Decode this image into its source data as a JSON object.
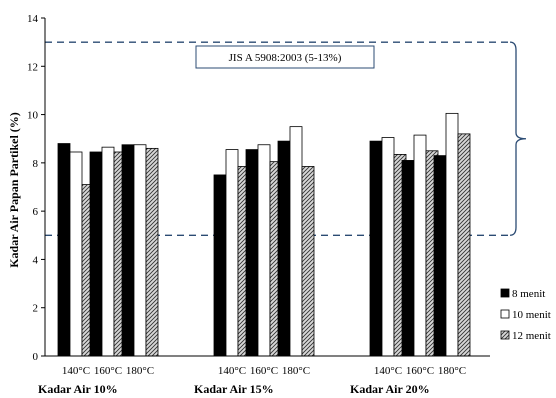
{
  "chart_data": {
    "type": "bar",
    "ylabel": "Kadar Air Papan Partikel (%)",
    "ylim": [
      0,
      14
    ],
    "yticks": [
      0,
      2,
      4,
      6,
      8,
      10,
      12,
      14
    ],
    "grid": false,
    "groups": [
      {
        "label": "Kadar Air 10%",
        "temperatures": [
          "140°C",
          "160°C",
          "180°C"
        ]
      },
      {
        "label": "Kadar Air 15%",
        "temperatures": [
          "140°C",
          "160°C",
          "180°C"
        ]
      },
      {
        "label": "Kadar Air 20%",
        "temperatures": [
          "140°C",
          "160°C",
          "180°C"
        ]
      }
    ],
    "series": [
      {
        "name": "8 menit",
        "color": "#000000",
        "pattern": "solid",
        "values": [
          [
            8.8,
            8.45,
            8.75
          ],
          [
            7.5,
            8.55,
            8.9
          ],
          [
            8.9,
            8.1,
            8.3
          ]
        ]
      },
      {
        "name": "10 menit",
        "color": "#ffffff",
        "pattern": "open",
        "values": [
          [
            8.45,
            8.65,
            8.75
          ],
          [
            8.55,
            8.75,
            9.5
          ],
          [
            9.05,
            9.15,
            10.05
          ]
        ]
      },
      {
        "name": "12 menit",
        "color": "#a0a0a0",
        "pattern": "hatched",
        "values": [
          [
            7.1,
            8.45,
            8.6
          ],
          [
            7.85,
            8.05,
            7.85
          ],
          [
            8.35,
            8.5,
            9.2
          ]
        ]
      }
    ],
    "reference_band": {
      "label": "JIS A 5908:2003 (5-13%)",
      "min": 5,
      "max": 13
    },
    "legend_position": "right"
  }
}
